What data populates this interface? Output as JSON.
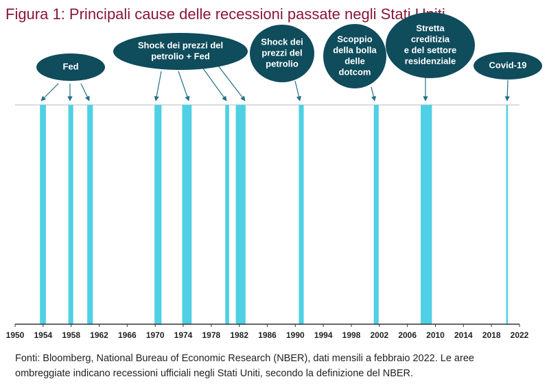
{
  "chart_data": {
    "type": "timeline",
    "title": "Figura 1: Principali cause delle recessioni passate negli Stati Uniti",
    "note": [
      "Fonti: Bloomberg, National Bureau of Economic Research (NBER), dati mensili a febbraio 2022. Le aree",
      "ombreggiate indicano recessioni ufficiali negli Stati Uniti, secondo la definizione del NBER."
    ],
    "color": "#4fd0e4",
    "ranges": [
      {
        "start": 1953.55,
        "end": 1954.4
      },
      {
        "start": 1957.6,
        "end": 1958.3
      },
      {
        "start": 1960.3,
        "end": 1961.1
      },
      {
        "start": 1969.9,
        "end": 1970.9
      },
      {
        "start": 1973.85,
        "end": 1975.2
      },
      {
        "start": 1980.0,
        "end": 1980.55
      },
      {
        "start": 1981.5,
        "end": 1982.9
      },
      {
        "start": 1990.5,
        "end": 1991.2
      },
      {
        "start": 2001.2,
        "end": 2001.9
      },
      {
        "start": 2007.9,
        "end": 2009.5
      },
      {
        "start": 2020.1,
        "end": 2020.35
      }
    ],
    "annotations": [
      {
        "lines": [
          "Fed"
        ]
      },
      {
        "lines": [
          "Shock dei prezzi del",
          "petrolio + Fed"
        ]
      },
      {
        "lines": [
          "Shock dei",
          "prezzi del",
          "petrolio"
        ]
      },
      {
        "lines": [
          "Scoppio",
          "della bolla",
          "delle",
          "dotcom"
        ]
      },
      {
        "lines": [
          "Stretta",
          "creditizia",
          "e del settore",
          "residenziale"
        ]
      },
      {
        "lines": [
          "Covid-19"
        ]
      }
    ],
    "xlim": [
      1950,
      2022
    ],
    "xticks": [
      1950,
      1954,
      1958,
      1962,
      1966,
      1970,
      1974,
      1978,
      1982,
      1986,
      1990,
      1994,
      1998,
      2002,
      2006,
      2010,
      2014,
      2018,
      2022
    ]
  }
}
